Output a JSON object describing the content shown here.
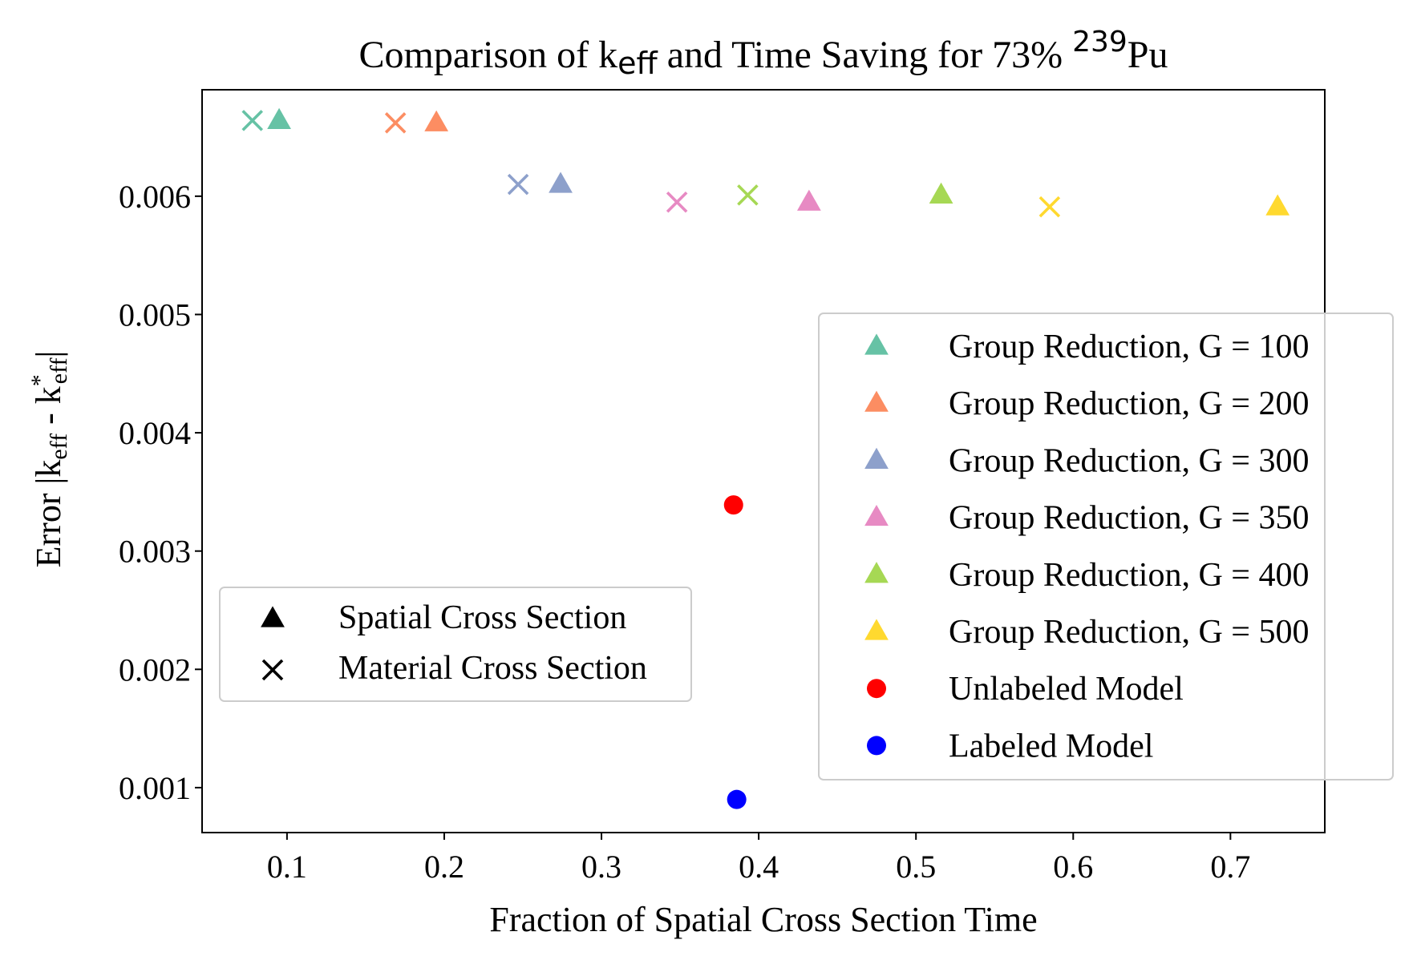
{
  "chart_data": {
    "type": "scatter",
    "title": {
      "prefix": "Comparison of k",
      "subscript": "eff",
      "middle": " and Time Saving for 73% ",
      "superscript": "239",
      "suffix": "Pu"
    },
    "xlabel": "Fraction of Spatial Cross Section Time",
    "ylabel": {
      "prefix": "Error |k",
      "sub1": "eff",
      "middle": " - k",
      "sup2": "*",
      "sub2": "eff",
      "suffix": "|"
    },
    "xlim": [
      0.046,
      0.76
    ],
    "ylim": [
      0.00062,
      0.0069
    ],
    "xticks": [
      {
        "value": 0.1,
        "label": "0.1"
      },
      {
        "value": 0.2,
        "label": "0.2"
      },
      {
        "value": 0.3,
        "label": "0.3"
      },
      {
        "value": 0.4,
        "label": "0.4"
      },
      {
        "value": 0.5,
        "label": "0.5"
      },
      {
        "value": 0.6,
        "label": "0.6"
      },
      {
        "value": 0.7,
        "label": "0.7"
      }
    ],
    "yticks": [
      {
        "value": 0.001,
        "label": "0.001"
      },
      {
        "value": 0.002,
        "label": "0.002"
      },
      {
        "value": 0.003,
        "label": "0.003"
      },
      {
        "value": 0.004,
        "label": "0.004"
      },
      {
        "value": 0.005,
        "label": "0.005"
      },
      {
        "value": 0.006,
        "label": "0.006"
      }
    ],
    "series": [
      {
        "name": "Group Reduction, G = 100",
        "color": "#66c2a5",
        "legend_marker": "triangle",
        "points": [
          {
            "x": 0.078,
            "y": 0.00664,
            "marker": "x"
          },
          {
            "x": 0.095,
            "y": 0.00664,
            "marker": "triangle"
          }
        ]
      },
      {
        "name": "Group Reduction, G = 200",
        "color": "#fc8d62",
        "legend_marker": "triangle",
        "points": [
          {
            "x": 0.169,
            "y": 0.00662,
            "marker": "x"
          },
          {
            "x": 0.195,
            "y": 0.00662,
            "marker": "triangle"
          }
        ]
      },
      {
        "name": "Group Reduction, G = 300",
        "color": "#8da0cb",
        "legend_marker": "triangle",
        "points": [
          {
            "x": 0.247,
            "y": 0.0061,
            "marker": "x"
          },
          {
            "x": 0.274,
            "y": 0.0061,
            "marker": "triangle"
          }
        ]
      },
      {
        "name": "Group Reduction, G = 350",
        "color": "#e78ac3",
        "legend_marker": "triangle",
        "points": [
          {
            "x": 0.348,
            "y": 0.00595,
            "marker": "x"
          },
          {
            "x": 0.432,
            "y": 0.00595,
            "marker": "triangle"
          }
        ]
      },
      {
        "name": "Group Reduction, G = 400",
        "color": "#a6d854",
        "legend_marker": "triangle",
        "points": [
          {
            "x": 0.393,
            "y": 0.00601,
            "marker": "x"
          },
          {
            "x": 0.516,
            "y": 0.00601,
            "marker": "triangle"
          }
        ]
      },
      {
        "name": "Group Reduction, G = 500",
        "color": "#ffd92f",
        "legend_marker": "triangle",
        "points": [
          {
            "x": 0.585,
            "y": 0.00591,
            "marker": "x"
          },
          {
            "x": 0.73,
            "y": 0.00591,
            "marker": "triangle"
          }
        ]
      },
      {
        "name": "Unlabeled Model",
        "color": "#ff0000",
        "legend_marker": "circle",
        "points": [
          {
            "x": 0.384,
            "y": 0.00339,
            "marker": "circle"
          }
        ]
      },
      {
        "name": "Labeled Model",
        "color": "#0000ff",
        "legend_marker": "circle",
        "points": [
          {
            "x": 0.386,
            "y": 0.0009,
            "marker": "circle"
          }
        ]
      }
    ],
    "marker_legend": [
      {
        "label": "Spatial Cross Section",
        "marker": "triangle",
        "color": "#000000"
      },
      {
        "label": "Material Cross Section",
        "marker": "x",
        "color": "#000000"
      }
    ],
    "legend_placement": "center-right",
    "marker_legend_placement": "lower-left",
    "grid": false
  }
}
